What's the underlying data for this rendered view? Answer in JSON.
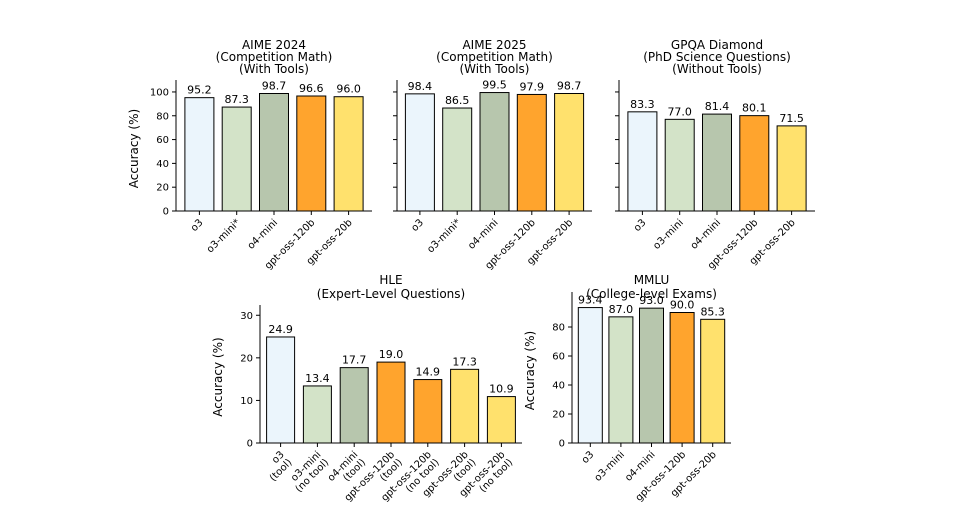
{
  "palette": [
    "#ebf5fc",
    "#d3e3c8",
    "#b7c6ad",
    "#ffa42d",
    "#ffe16d"
  ],
  "stroke": "#000000",
  "ylabel": "Accuracy (%)",
  "chart_data": [
    {
      "type": "bar",
      "title": [
        "AIME 2024",
        "(Competition Math)",
        "(With Tools)"
      ],
      "categories": [
        [
          "o3"
        ],
        [
          "o3-mini*"
        ],
        [
          "o4-mini"
        ],
        [
          "gpt-oss-120b"
        ],
        [
          "gpt-oss-20b"
        ]
      ],
      "values": [
        95.2,
        87.3,
        98.7,
        96.6,
        96.0
      ],
      "value_labels": [
        "95.2",
        "87.3",
        "98.7",
        "96.6",
        "96.0"
      ],
      "colors": [
        0,
        1,
        2,
        3,
        4
      ],
      "ylabel": "Accuracy (%)",
      "ylim": [
        0,
        105
      ],
      "yticks": [
        0,
        20,
        40,
        60,
        80,
        100
      ],
      "show_ytick_labels": true,
      "grid": false
    },
    {
      "type": "bar",
      "title": [
        "AIME 2025",
        "(Competition Math)",
        "(With Tools)"
      ],
      "categories": [
        [
          "o3"
        ],
        [
          "o3-mini*"
        ],
        [
          "o4-mini"
        ],
        [
          "gpt-oss-120b"
        ],
        [
          "gpt-oss-20b"
        ]
      ],
      "values": [
        98.4,
        86.5,
        99.5,
        97.9,
        98.7
      ],
      "value_labels": [
        "98.4",
        "86.5",
        "99.5",
        "97.9",
        "98.7"
      ],
      "colors": [
        0,
        1,
        2,
        3,
        4
      ],
      "ylabel": "",
      "ylim": [
        0,
        105
      ],
      "yticks": [
        0,
        20,
        40,
        60,
        80,
        100
      ],
      "show_ytick_labels": false,
      "grid": false
    },
    {
      "type": "bar",
      "title": [
        "GPQA Diamond",
        "(PhD Science Questions)",
        "(Without Tools)"
      ],
      "categories": [
        [
          "o3"
        ],
        [
          "o3-mini"
        ],
        [
          "o4-mini"
        ],
        [
          "gpt-oss-120b"
        ],
        [
          "gpt-oss-20b"
        ]
      ],
      "values": [
        83.3,
        77.0,
        81.4,
        80.1,
        71.5
      ],
      "value_labels": [
        "83.3",
        "77.0",
        "81.4",
        "80.1",
        "71.5"
      ],
      "colors": [
        0,
        1,
        2,
        3,
        4
      ],
      "ylabel": "",
      "ylim": [
        0,
        105
      ],
      "yticks": [
        0,
        20,
        40,
        60,
        80,
        100
      ],
      "show_ytick_labels": false,
      "grid": false
    },
    {
      "type": "bar",
      "title": [
        "HLE",
        "(Expert-Level Questions)"
      ],
      "categories": [
        [
          "o3",
          "(tool)"
        ],
        [
          "o3-mini",
          "(no tool)"
        ],
        [
          "o4-mini",
          "(tool)"
        ],
        [
          "gpt-oss-120b",
          "(tool)"
        ],
        [
          "gpt-oss-120b",
          "(no tool)"
        ],
        [
          "gpt-oss-20b",
          "(tool)"
        ],
        [
          "gpt-oss-20b",
          "(no tool)"
        ]
      ],
      "values": [
        24.9,
        13.4,
        17.7,
        19.0,
        14.9,
        17.3,
        10.9
      ],
      "value_labels": [
        "24.9",
        "13.4",
        "17.7",
        "19.0",
        "14.9",
        "17.3",
        "10.9"
      ],
      "colors": [
        0,
        1,
        2,
        3,
        3,
        4,
        4
      ],
      "ylabel": "Accuracy (%)",
      "ylim": [
        0,
        31
      ],
      "yticks": [
        0,
        10,
        20,
        30
      ],
      "show_ytick_labels": true,
      "grid": false
    },
    {
      "type": "bar",
      "title": [
        "MMLU",
        "(College-level Exams)"
      ],
      "categories": [
        [
          "o3"
        ],
        [
          "o3-mini"
        ],
        [
          "o4-mini"
        ],
        [
          "gpt-oss-120b"
        ],
        [
          "gpt-oss-20b"
        ]
      ],
      "values": [
        93.4,
        87.0,
        93.0,
        90.0,
        85.3
      ],
      "value_labels": [
        "93.4",
        "87.0",
        "93.0",
        "90.0",
        "85.3"
      ],
      "colors": [
        0,
        1,
        2,
        3,
        4
      ],
      "ylabel": "Accuracy (%)",
      "ylim": [
        0,
        100
      ],
      "yticks": [
        0,
        20,
        40,
        60,
        80
      ],
      "show_ytick_labels": true,
      "grid": false
    }
  ]
}
